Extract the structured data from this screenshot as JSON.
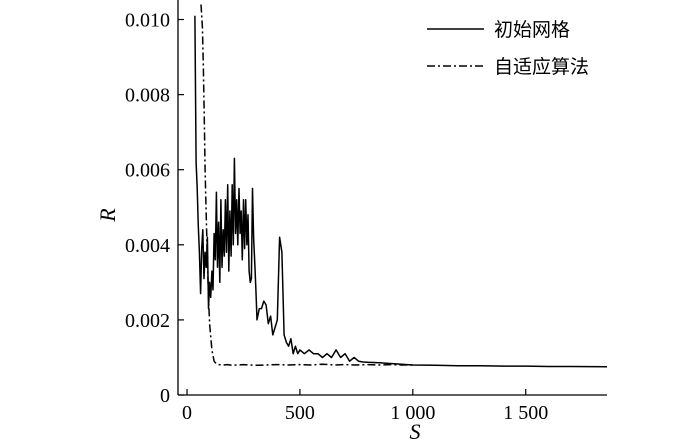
{
  "chart_data": {
    "type": "line",
    "xlabel": "S",
    "ylabel": "R",
    "xlim": [
      -40,
      1860
    ],
    "ylim": [
      0,
      0.0102
    ],
    "xticks": [
      0,
      500,
      1000,
      1500
    ],
    "xtick_labels": [
      "0",
      "500",
      "1 000",
      "1 500"
    ],
    "yticks": [
      0,
      0.002,
      0.004,
      0.006,
      0.008,
      0.01
    ],
    "ytick_labels": [
      "0",
      "0.002",
      "0.004",
      "0.006",
      "0.008",
      "0.010"
    ],
    "grid": false,
    "legend_position": "top-right",
    "series": [
      {
        "name": "初始网格",
        "style": "solid",
        "color": "#000000",
        "x": [
          35,
          40,
          45,
          50,
          55,
          60,
          65,
          70,
          75,
          80,
          85,
          90,
          95,
          100,
          105,
          110,
          115,
          120,
          125,
          130,
          135,
          140,
          145,
          150,
          155,
          160,
          165,
          170,
          175,
          180,
          185,
          190,
          195,
          200,
          205,
          210,
          215,
          220,
          225,
          230,
          235,
          240,
          245,
          250,
          255,
          260,
          265,
          270,
          275,
          280,
          285,
          290,
          295,
          300,
          305,
          310,
          320,
          330,
          340,
          350,
          360,
          370,
          380,
          390,
          400,
          410,
          420,
          430,
          440,
          450,
          460,
          470,
          480,
          490,
          500,
          520,
          540,
          560,
          580,
          600,
          620,
          640,
          660,
          680,
          700,
          720,
          740,
          760,
          780,
          800,
          850,
          900,
          950,
          1000,
          1100,
          1200,
          1300,
          1400,
          1500,
          1600,
          1700,
          1860
        ],
        "y": [
          0.0101,
          0.0062,
          0.0055,
          0.0045,
          0.0038,
          0.0027,
          0.0039,
          0.0044,
          0.0031,
          0.0038,
          0.0034,
          0.0042,
          0.0023,
          0.003,
          0.0026,
          0.0033,
          0.0028,
          0.0043,
          0.0036,
          0.0054,
          0.0034,
          0.0046,
          0.003,
          0.0052,
          0.0034,
          0.0044,
          0.0037,
          0.0052,
          0.0038,
          0.0056,
          0.0033,
          0.0049,
          0.0037,
          0.0056,
          0.004,
          0.0063,
          0.0043,
          0.0052,
          0.004,
          0.0055,
          0.0043,
          0.0049,
          0.0036,
          0.0052,
          0.0039,
          0.0052,
          0.004,
          0.0048,
          0.0033,
          0.003,
          0.0031,
          0.0055,
          0.0042,
          0.0035,
          0.0028,
          0.002,
          0.0023,
          0.0023,
          0.0025,
          0.0024,
          0.0019,
          0.0021,
          0.0016,
          0.0018,
          0.002,
          0.0042,
          0.0038,
          0.0016,
          0.0014,
          0.0013,
          0.0015,
          0.0011,
          0.0013,
          0.0011,
          0.0012,
          0.0011,
          0.0012,
          0.0011,
          0.0011,
          0.001,
          0.0011,
          0.001,
          0.0012,
          0.001,
          0.0011,
          0.0009,
          0.001,
          0.0009,
          0.00088,
          0.00087,
          0.00086,
          0.00084,
          0.00082,
          0.0008,
          0.00079,
          0.00078,
          0.00078,
          0.00077,
          0.00077,
          0.00076,
          0.00076,
          0.00075
        ]
      },
      {
        "name": "自适应算法",
        "style": "dashdot",
        "color": "#000000",
        "x": [
          62,
          68,
          72,
          76,
          80,
          85,
          90,
          95,
          100,
          110,
          120,
          130,
          140,
          160,
          180,
          200,
          250,
          300,
          350,
          400,
          450,
          500,
          550,
          600,
          650,
          700,
          750,
          800,
          850,
          900,
          950,
          1000
        ],
        "y": [
          0.0104,
          0.0098,
          0.0088,
          0.0075,
          0.006,
          0.0048,
          0.0036,
          0.0026,
          0.0019,
          0.0012,
          0.0009,
          0.00083,
          0.00081,
          0.0008,
          0.00081,
          0.00079,
          0.00081,
          0.00079,
          0.0008,
          0.00081,
          0.0008,
          0.00081,
          0.0008,
          0.00082,
          0.0008,
          0.00081,
          0.0008,
          0.00081,
          0.0008,
          0.00081,
          0.0008,
          0.0008
        ]
      }
    ]
  }
}
